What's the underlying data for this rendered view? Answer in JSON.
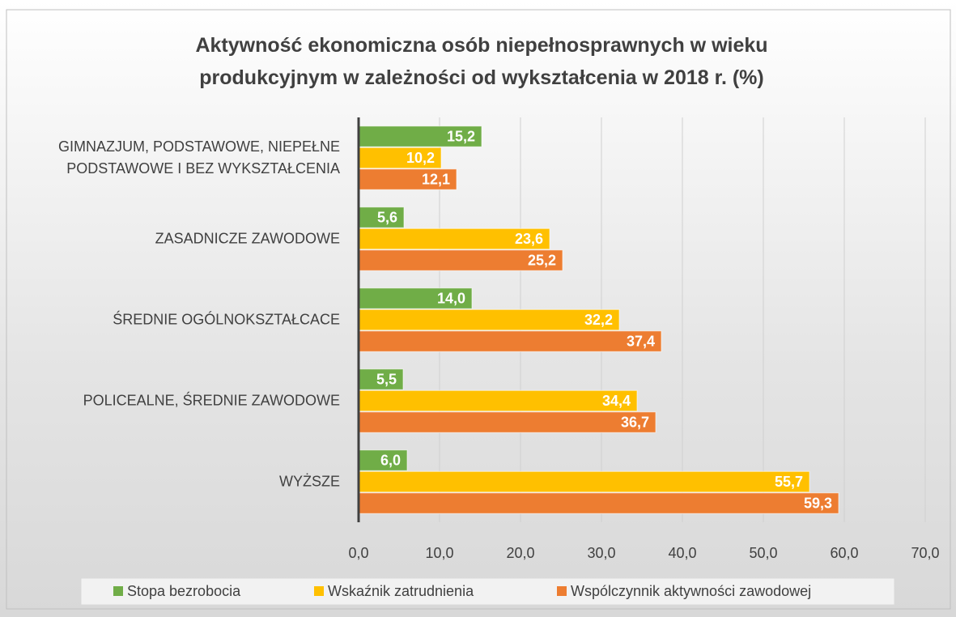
{
  "chart_data": {
    "type": "bar",
    "orientation": "horizontal",
    "title": "Aktywność ekonomiczna osób niepełnosprawnych w wieku produkcyjnym w zależności od wykształcenia w 2018 r. (%)",
    "categories": [
      "GIMNAZJUM, PODSTAWOWE, NIEPEŁNE PODSTAWOWE I BEZ WYKSZTAŁCENIA",
      "ZASADNICZE ZAWODOWE",
      "ŚREDNIE OGÓLNOKSZTAŁCACE",
      "POLICEALNE, ŚREDNIE ZAWODOWE",
      "WYŻSZE"
    ],
    "series": [
      {
        "name": "Stopa bezrobocia",
        "color": "#70ad47",
        "values": [
          15.2,
          5.6,
          14.0,
          5.5,
          6.0
        ],
        "value_labels": [
          "15,2",
          "5,6",
          "14,0",
          "5,5",
          "6,0"
        ]
      },
      {
        "name": "Wskaźnik zatrudnienia",
        "color": "#ffc000",
        "values": [
          10.2,
          23.6,
          32.2,
          34.4,
          55.7
        ],
        "value_labels": [
          "10,2",
          "23,6",
          "32,2",
          "34,4",
          "55,7"
        ]
      },
      {
        "name": "Wspólczynnik aktywności zawodowej",
        "color": "#ed7d31",
        "values": [
          12.1,
          25.2,
          37.4,
          36.7,
          59.3
        ],
        "value_labels": [
          "12,1",
          "25,2",
          "37,4",
          "36,7",
          "59,3"
        ]
      }
    ],
    "xlim": [
      0,
      70
    ],
    "xticks": [
      {
        "value": 0,
        "label": "0,0"
      },
      {
        "value": 10,
        "label": "10,0"
      },
      {
        "value": 20,
        "label": "20,0"
      },
      {
        "value": 30,
        "label": "30,0"
      },
      {
        "value": 40,
        "label": "40,0"
      },
      {
        "value": 50,
        "label": "50,0"
      },
      {
        "value": 60,
        "label": "60,0"
      },
      {
        "value": 70,
        "label": "70,0"
      }
    ],
    "grid": true,
    "legend": "bottom"
  }
}
